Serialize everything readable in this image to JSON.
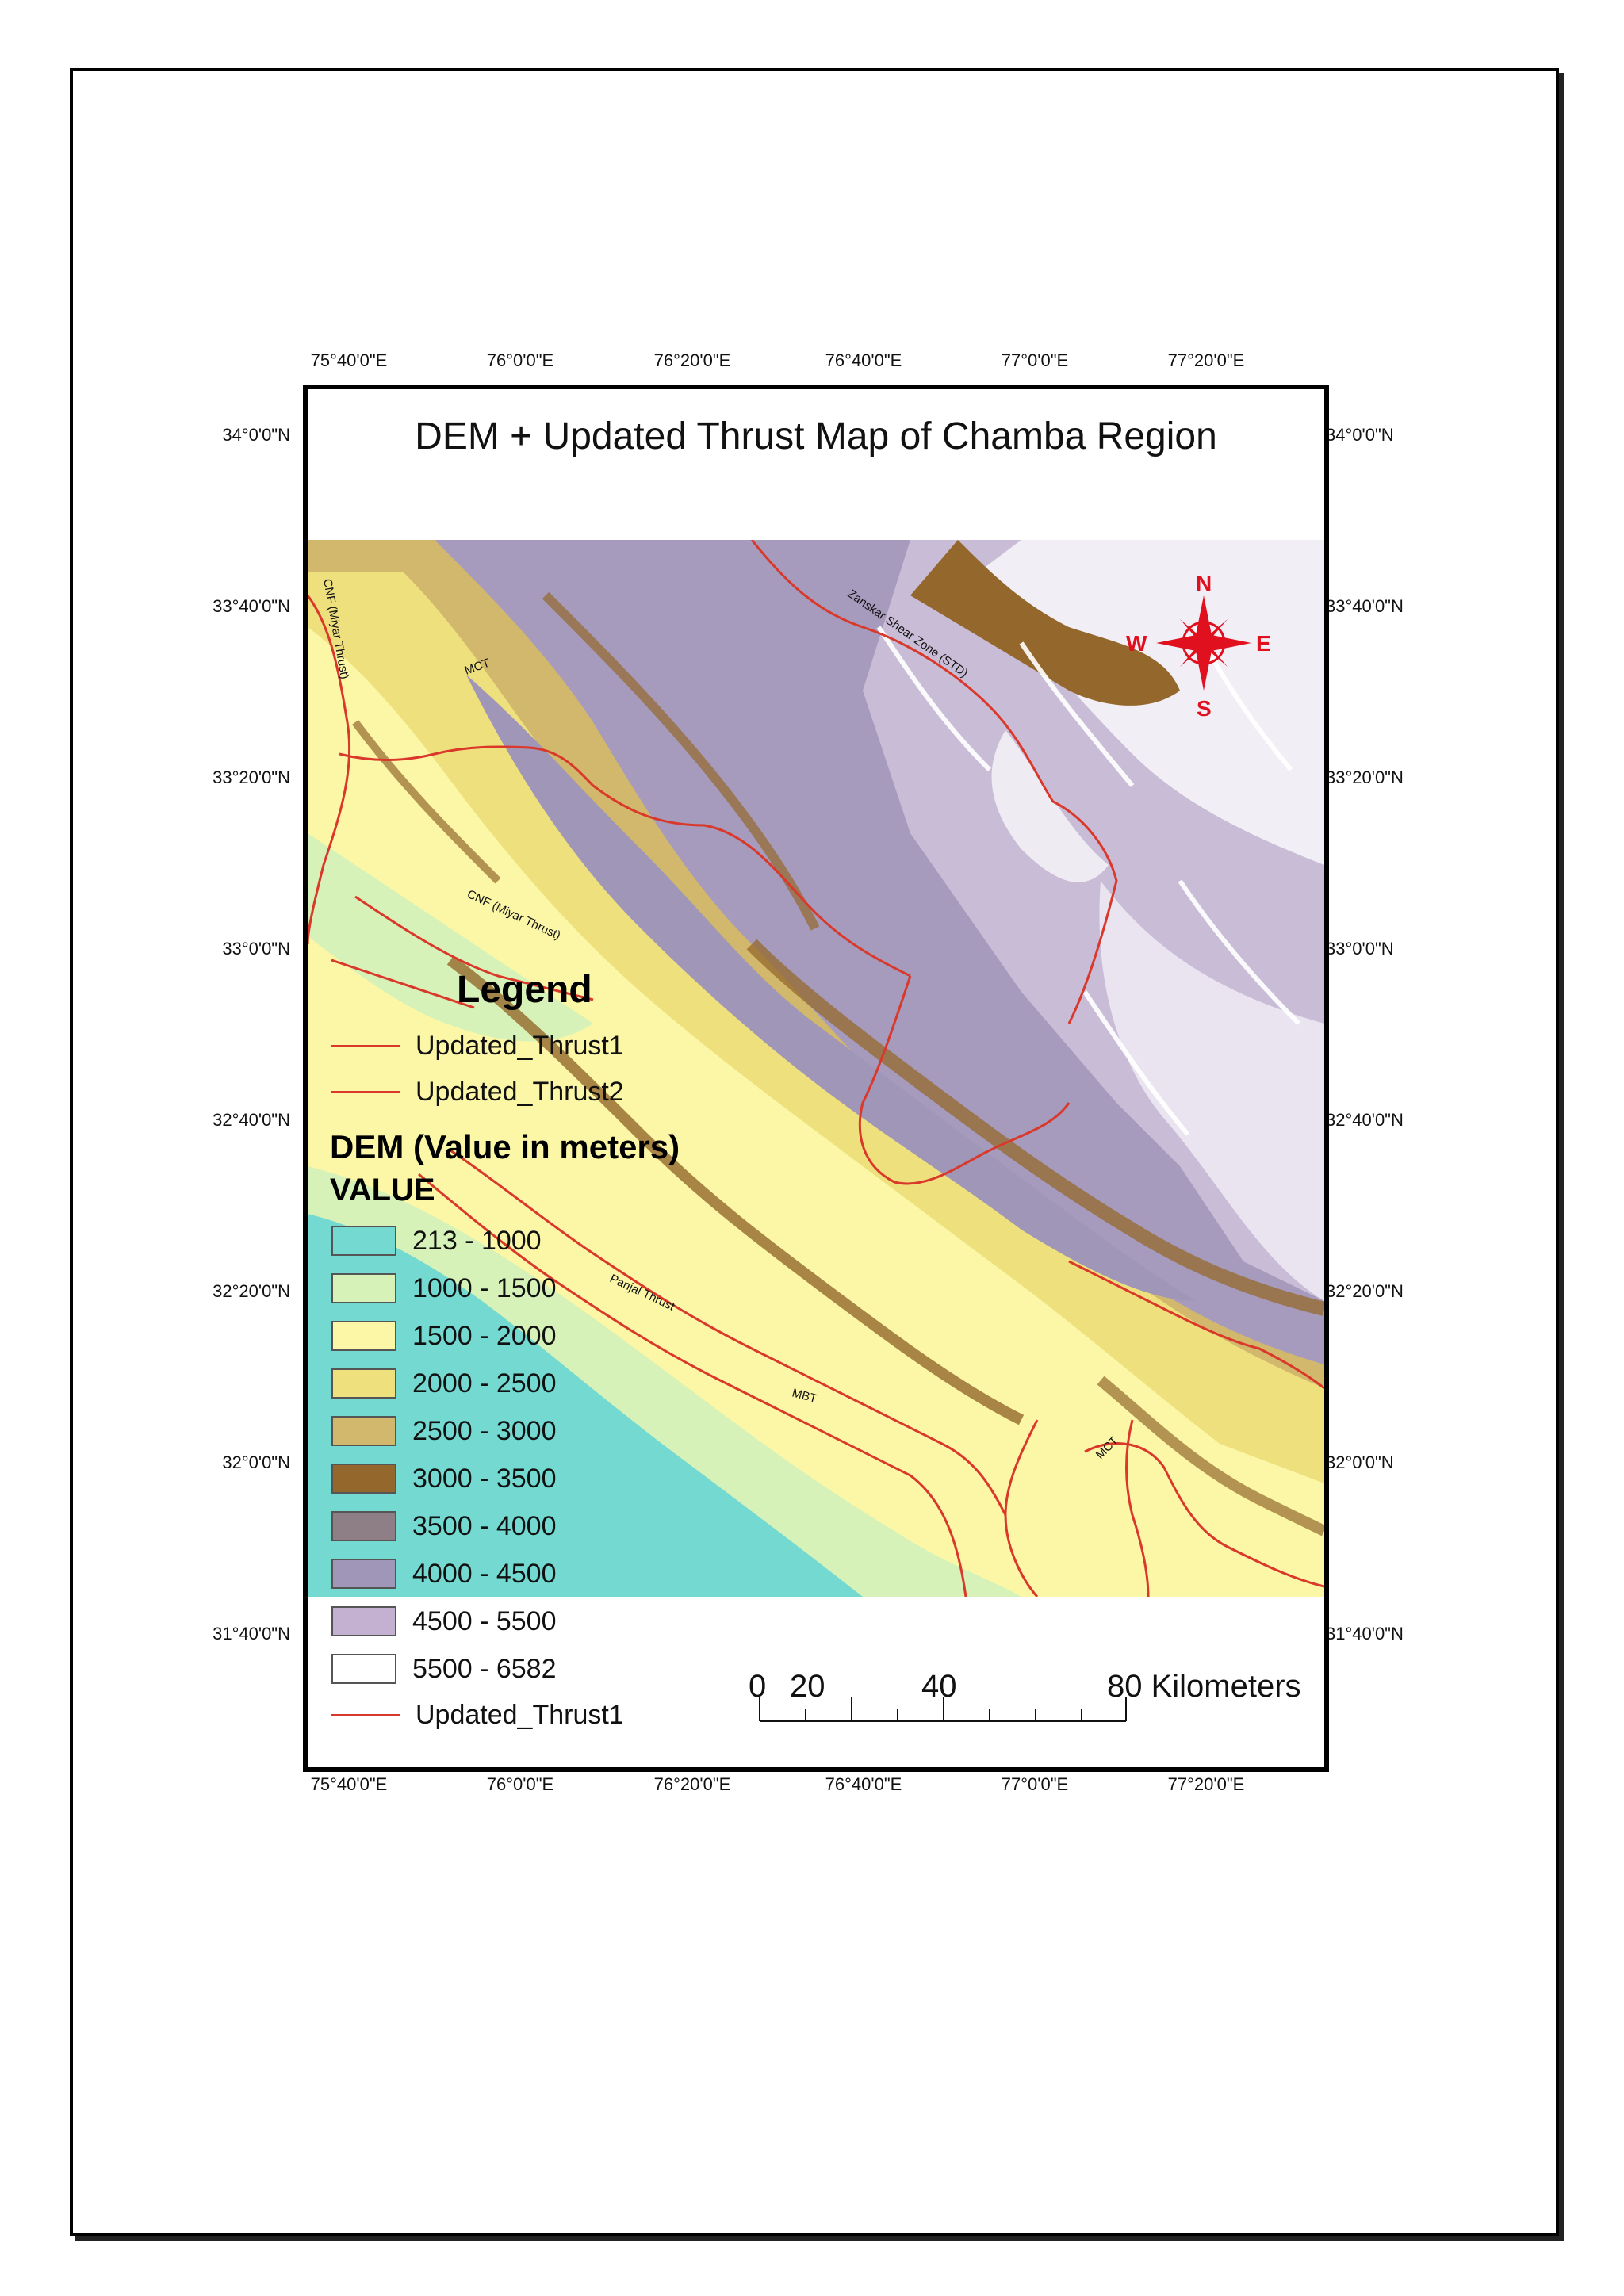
{
  "map": {
    "title": "DEM + Updated Thrust Map of Chamba Region",
    "top_longitudes": [
      "75°40'0\"E",
      "76°0'0\"E",
      "76°20'0\"E",
      "76°40'0\"E",
      "77°0'0\"E",
      "77°20'0\"E"
    ],
    "bottom_longitudes": [
      "75°40'0\"E",
      "76°0'0\"E",
      "76°20'0\"E",
      "76°40'0\"E",
      "77°0'0\"E",
      "77°20'0\"E"
    ],
    "left_latitudes": [
      "34°0'0\"N",
      "33°40'0\"N",
      "33°20'0\"N",
      "33°0'0\"N",
      "32°40'0\"N",
      "32°20'0\"N",
      "32°0'0\"N",
      "31°40'0\"N"
    ],
    "right_latitudes": [
      "34°0'0\"N",
      "33°40'0\"N",
      "33°20'0\"N",
      "33°0'0\"N",
      "32°40'0\"N",
      "32°20'0\"N",
      "32°0'0\"N",
      "31°40'0\"N"
    ],
    "annotations": {
      "cnf_vertical": "CNF (Miyar Thrust)",
      "mct_north": "MCT",
      "zanskar": "Zanskar Shear Zone (STD)",
      "cnf_middle": "CNF (Miyar Thrust)",
      "panjal": "Panjal Thrust",
      "mbt": "MBT",
      "mct_south": "MCT"
    },
    "compass": {
      "n": "N",
      "s": "S",
      "e": "E",
      "w": "W"
    }
  },
  "legend": {
    "title": "Legend",
    "thrust1": "Updated_Thrust1",
    "thrust2": "Updated_Thrust2",
    "dem_title": "DEM (Value in meters)",
    "value_title": "VALUE",
    "classes": [
      {
        "label": "213 - 1000",
        "color": "#73d9d1"
      },
      {
        "label": "1000 - 1500",
        "color": "#d6f2b8"
      },
      {
        "label": "1500 - 2000",
        "color": "#fbf7a7"
      },
      {
        "label": "2000 - 2500",
        "color": "#efe07e"
      },
      {
        "label": "2500 - 3000",
        "color": "#d2b86c"
      },
      {
        "label": "3000 - 3500",
        "color": "#94682c"
      },
      {
        "label": "3500 - 4000",
        "color": "#8e7f86"
      },
      {
        "label": "4000 - 4500",
        "color": "#9f96b8"
      },
      {
        "label": "4500 - 5500",
        "color": "#c4b1d1"
      },
      {
        "label": "5500 - 6582",
        "color": "#ffffff"
      }
    ],
    "thrust_bottom": "Updated_Thrust1",
    "thrust_color": "#d9382a"
  },
  "scale_bar": {
    "label_0": "0",
    "label_20": "20",
    "label_40": "40",
    "label_80": "80 Kilometers"
  }
}
